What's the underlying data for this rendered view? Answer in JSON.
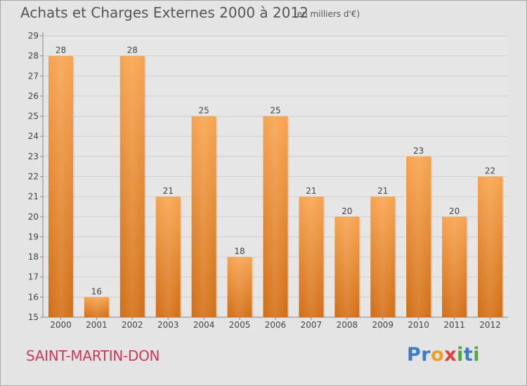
{
  "header": {
    "title": "Achats et Charges Externes 2000 à 2012",
    "subtitle": "(en milliers d'€)"
  },
  "footer": {
    "commune": "SAINT-MARTIN-DON",
    "logo_letters": [
      "P",
      "r",
      "o",
      "x",
      "i",
      "t",
      "i"
    ]
  },
  "colors": {
    "bar_top": "#f7a34d",
    "bar_bottom": "#d26e14",
    "commune_text": "#c83a5c",
    "logo": [
      "#3b7cc4",
      "#3b7cc4",
      "#f0a020",
      "#e04040",
      "#52a83a",
      "#3b7cc4",
      "#52a83a"
    ]
  },
  "chart_data": {
    "type": "bar",
    "categories": [
      "2000",
      "2001",
      "2002",
      "2003",
      "2004",
      "2005",
      "2006",
      "2007",
      "2008",
      "2009",
      "2010",
      "2011",
      "2012"
    ],
    "values": [
      28,
      16,
      28,
      21,
      25,
      18,
      25,
      21,
      20,
      21,
      23,
      20,
      22
    ],
    "ylim": [
      15,
      29
    ],
    "yticks": [
      15,
      16,
      17,
      18,
      19,
      20,
      21,
      22,
      23,
      24,
      25,
      26,
      27,
      28,
      29
    ],
    "grid": true,
    "title": "Achats et Charges Externes 2000 à 2012",
    "xlabel": "",
    "ylabel": ""
  }
}
